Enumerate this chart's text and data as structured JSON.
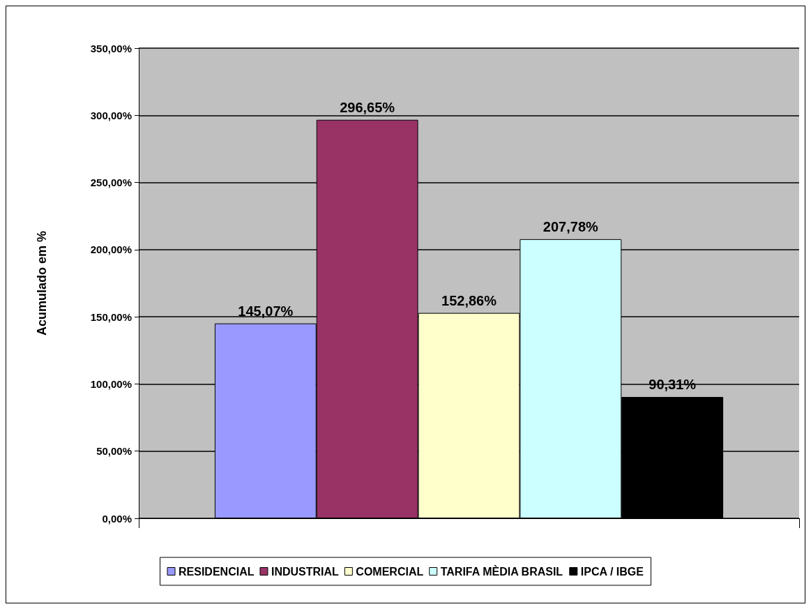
{
  "chart_data": {
    "type": "bar",
    "ylabel": "Acumulado em %",
    "categories": [
      null
    ],
    "series": [
      {
        "name": "RESIDENCIAL",
        "color": "#9999ff",
        "values": [
          145.07
        ],
        "value_labels": [
          "145,07%"
        ]
      },
      {
        "name": "INDUSTRIAL",
        "color": "#993366",
        "values": [
          296.65
        ],
        "value_labels": [
          "296,65%"
        ]
      },
      {
        "name": "COMERCIAL",
        "color": "#ffffcc",
        "values": [
          152.86
        ],
        "value_labels": [
          "152,86%"
        ]
      },
      {
        "name": "TARIFA MÈDIA BRASIL",
        "color": "#ccffff",
        "values": [
          207.78
        ],
        "value_labels": [
          "207,78%"
        ]
      },
      {
        "name": "IPCA / IBGE",
        "color": "#000000",
        "values": [
          90.31
        ],
        "value_labels": [
          "90,31%"
        ]
      }
    ],
    "ylim": [
      0,
      350
    ],
    "yticks": [
      {
        "value": 0,
        "label": "0,00%"
      },
      {
        "value": 50,
        "label": "50,00%"
      },
      {
        "value": 100,
        "label": "100,00%"
      },
      {
        "value": 150,
        "label": "150,00%"
      },
      {
        "value": 200,
        "label": "200,00%"
      },
      {
        "value": 250,
        "label": "250,00%"
      },
      {
        "value": 300,
        "label": "300,00%"
      },
      {
        "value": 350,
        "label": "350,00%"
      }
    ],
    "grid": "y",
    "legend": "bottom"
  }
}
